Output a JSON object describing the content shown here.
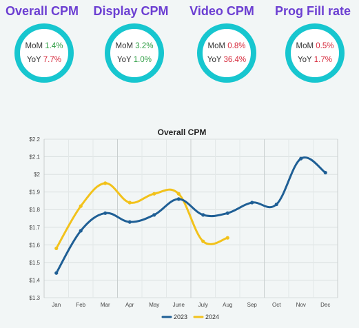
{
  "kpis": [
    {
      "title": "Overall CPM",
      "mom_label": "MoM",
      "mom_value": "1.4%",
      "yoy_label": "YoY",
      "yoy_value": "7.7%"
    },
    {
      "title": "Display CPM",
      "mom_label": "MoM",
      "mom_value": "3.2%",
      "yoy_label": "YoY",
      "yoy_value": "1.0%"
    },
    {
      "title": "Video CPM",
      "mom_label": "MoM",
      "mom_value": "0.8%",
      "yoy_label": "YoY",
      "yoy_value": "36.4%"
    },
    {
      "title": "Prog Fill rate",
      "mom_label": "MoM",
      "mom_value": "0.5%",
      "yoy_label": "YoY",
      "yoy_value": "1.7%"
    }
  ],
  "colors": {
    "title": "#6c3fd2",
    "ring": "#17c6cf",
    "positive": "#2f9e44",
    "negative": "#d6283a",
    "series_2023": "#1f5f95",
    "series_2024": "#f2c21b"
  },
  "chart_data": {
    "type": "line",
    "title": "Overall CPM",
    "categories": [
      "Jan",
      "Feb",
      "Mar",
      "Apr",
      "May",
      "June",
      "July",
      "Aug",
      "Sep",
      "Oct",
      "Nov",
      "Dec"
    ],
    "y_tick_labels": [
      "$1.3",
      "$1.4",
      "$1.5",
      "$1.6",
      "$1.7",
      "$1.8",
      "$1.9",
      "$2",
      "$2.1",
      "$2.2"
    ],
    "ylim": [
      1.3,
      2.2
    ],
    "grid": true,
    "legend_position": "bottom",
    "series": [
      {
        "name": "2023",
        "values": [
          1.44,
          1.68,
          1.78,
          1.73,
          1.77,
          1.86,
          1.77,
          1.78,
          1.84,
          1.83,
          2.09,
          2.01
        ]
      },
      {
        "name": "2024",
        "values": [
          1.58,
          1.82,
          1.95,
          1.84,
          1.89,
          1.89,
          1.62,
          1.64,
          null,
          null,
          null,
          null
        ]
      }
    ]
  }
}
